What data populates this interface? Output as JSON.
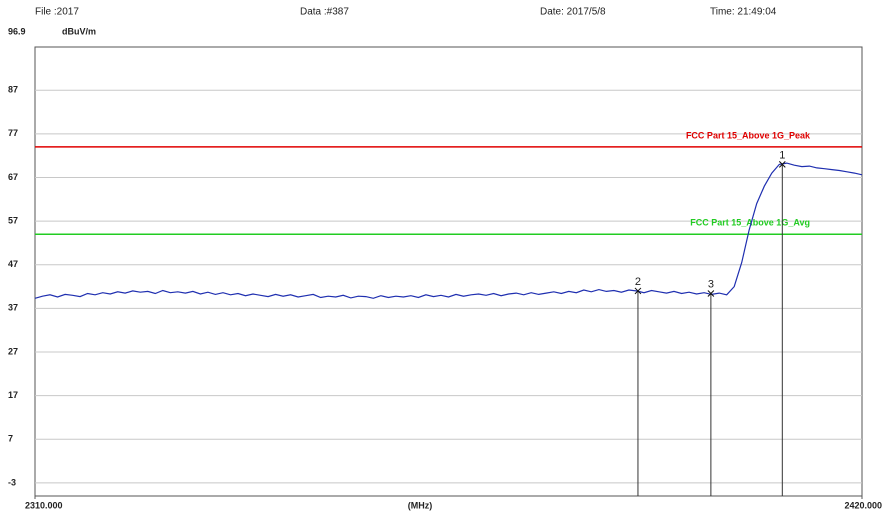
{
  "chart_data": {
    "type": "line",
    "file_label": "File :2017",
    "data_label": "Data :#387",
    "date_label": "Date: 2017/5/8",
    "time_label": "Time: 21:49:04",
    "y_unit": "dBuV/m",
    "x_label": "(MHz)",
    "xlim": [
      2310,
      2420
    ],
    "xticks": [
      {
        "value": 2310,
        "label": "2310.000"
      },
      {
        "value": 2420,
        "label": "2420.000"
      }
    ],
    "ylim": [
      -6,
      96.9
    ],
    "yticks": [
      -3,
      7,
      17,
      27,
      37,
      47,
      57,
      67,
      77,
      87,
      96.9
    ],
    "grid": true,
    "x": [
      2310,
      2311,
      2312,
      2313,
      2314,
      2315,
      2316,
      2317,
      2318,
      2319,
      2320,
      2321,
      2322,
      2323,
      2324,
      2325,
      2326,
      2327,
      2328,
      2329,
      2330,
      2331,
      2332,
      2333,
      2334,
      2335,
      2336,
      2337,
      2338,
      2339,
      2340,
      2341,
      2342,
      2343,
      2344,
      2345,
      2346,
      2347,
      2348,
      2349,
      2350,
      2351,
      2352,
      2353,
      2354,
      2355,
      2356,
      2357,
      2358,
      2359,
      2360,
      2361,
      2362,
      2363,
      2364,
      2365,
      2366,
      2367,
      2368,
      2369,
      2370,
      2371,
      2372,
      2373,
      2374,
      2375,
      2376,
      2377,
      2378,
      2379,
      2380,
      2381,
      2382,
      2383,
      2384,
      2385,
      2386,
      2387,
      2388,
      2389,
      2390,
      2391,
      2392,
      2393,
      2394,
      2395,
      2396,
      2397,
      2398,
      2399,
      2400,
      2401,
      2402,
      2403,
      2404,
      2405,
      2406,
      2407,
      2408,
      2409,
      2410,
      2411,
      2412,
      2413,
      2414,
      2415,
      2416,
      2417,
      2418,
      2419,
      2420
    ],
    "series": [
      {
        "color": "#1f2fb0",
        "values": [
          39.3,
          39.8,
          40.1,
          39.6,
          40.2,
          40.0,
          39.7,
          40.4,
          40.1,
          40.6,
          40.3,
          40.8,
          40.5,
          41.0,
          40.7,
          40.9,
          40.4,
          41.1,
          40.6,
          40.8,
          40.5,
          40.9,
          40.3,
          40.7,
          40.2,
          40.6,
          40.1,
          40.4,
          39.9,
          40.3,
          40.0,
          39.7,
          40.2,
          39.8,
          40.1,
          39.6,
          39.9,
          40.2,
          39.5,
          39.8,
          39.6,
          40.0,
          39.4,
          39.8,
          39.7,
          39.3,
          39.9,
          39.5,
          39.8,
          39.6,
          39.9,
          39.5,
          40.1,
          39.7,
          40.0,
          39.6,
          40.2,
          39.8,
          40.1,
          40.3,
          40.0,
          40.4,
          39.9,
          40.3,
          40.5,
          40.1,
          40.6,
          40.2,
          40.5,
          40.8,
          40.4,
          40.9,
          40.6,
          41.2,
          40.8,
          41.3,
          40.9,
          41.1,
          40.7,
          41.2,
          41.0,
          40.6,
          41.1,
          40.8,
          40.5,
          40.9,
          40.4,
          40.7,
          40.3,
          40.6,
          40.2,
          40.5,
          40.1,
          42.0,
          47.5,
          55.0,
          61.0,
          65.0,
          68.0,
          70.0,
          70.3,
          69.8,
          69.5,
          69.6,
          69.2,
          69.0,
          68.8,
          68.6,
          68.3,
          68.0,
          67.6
        ]
      }
    ],
    "limits": [
      {
        "name": "FCC Part 15_Above 1G_Peak",
        "color": "#e00000",
        "value": 74
      },
      {
        "name": "FCC Part 15_Above 1G_Avg",
        "color": "#22cc22",
        "value": 54
      }
    ],
    "markers": [
      {
        "label": "1",
        "x": 2409.4,
        "value": 70.0
      },
      {
        "label": "2",
        "x": 2390.2,
        "value": 41.0
      },
      {
        "label": "3",
        "x": 2399.9,
        "value": 40.4
      }
    ]
  }
}
